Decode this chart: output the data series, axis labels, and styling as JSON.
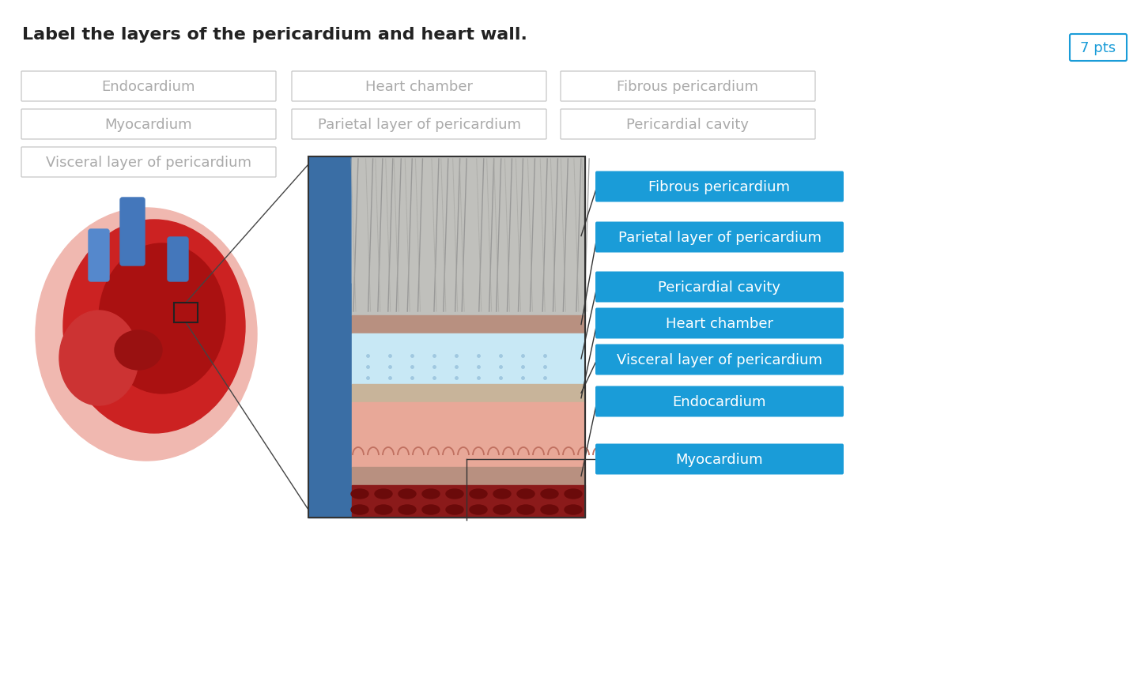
{
  "title": "Label the layers of the pericardium and heart wall.",
  "pts_label": "7 pts",
  "bg_color": "#ffffff",
  "bank_labels": [
    [
      "Endocardium",
      "Heart chamber",
      "Fibrous pericardium"
    ],
    [
      "Myocardium",
      "Parietal layer of pericardium",
      "Pericardial cavity"
    ],
    [
      "Visceral layer of pericardium"
    ]
  ],
  "answer_labels": [
    "Fibrous pericardium",
    "Parietal layer of pericardium",
    "Pericardial cavity",
    "Heart chamber",
    "Visceral layer of pericardium",
    "Endocardium",
    "Myocardium"
  ],
  "blue_color": "#1a9cd8",
  "bank_text_color": "#aaaaaa",
  "answer_text_color": "#ffffff",
  "title_fontsize": 16,
  "bank_fontsize": 13,
  "answer_fontsize": 13,
  "pts_fontsize": 13
}
